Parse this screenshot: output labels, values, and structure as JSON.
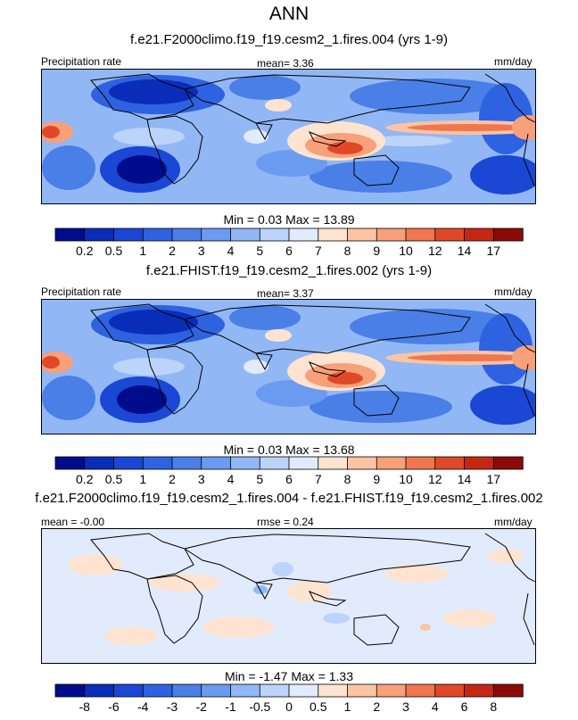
{
  "header": {
    "title": "ANN"
  },
  "panels": [
    {
      "title": "f.e21.F2000climo.f19_f19.cesm2_1.fires.004 (yrs 1-9)",
      "left_label": "Precipitation rate",
      "center_label": "mean=   3.36",
      "right_label": "mm/day",
      "stats": "Min =   0.03 Max =  13.89",
      "variant": "abs"
    },
    {
      "title": "f.e21.FHIST.f19_f19.cesm2_1.fires.002 (yrs 1-9)",
      "left_label": "Precipitation rate",
      "center_label": "mean=   3.37",
      "right_label": "mm/day",
      "stats": "Min =   0.03 Max =  13.68",
      "variant": "abs"
    },
    {
      "title": "f.e21.F2000climo.f19_f19.cesm2_1.fires.004 - f.e21.FHIST.f19_f19.cesm2_1.fires.002",
      "left_label": "mean =  -0.00",
      "center_label": "rmse =   0.24",
      "right_label": "mm/day",
      "stats": "Min =  -1.47 Max =   1.33",
      "variant": "diff"
    }
  ],
  "chart_data": [
    {
      "type": "heatmap",
      "title": "f.e21.F2000climo.f19_f19.cesm2_1.fires.004 (yrs 1-9)",
      "variable": "Precipitation rate",
      "units": "mm/day",
      "mean": 3.36,
      "min": 0.03,
      "max": 13.89,
      "colorbar_levels": [
        "0.2",
        "0.5",
        "1",
        "2",
        "3",
        "4",
        "5",
        "6",
        "7",
        "8",
        "9",
        "10",
        "12",
        "14",
        "17"
      ],
      "colorbar_colors": [
        "#000c8c",
        "#0a2db9",
        "#1a47d4",
        "#2e62e0",
        "#4a7fe8",
        "#6b9bf0",
        "#92b7f5",
        "#bcd3fa",
        "#e1ebfc",
        "#fde3d0",
        "#fbc4a4",
        "#f7a07a",
        "#f0764f",
        "#e0482a",
        "#c42814",
        "#8c0a0a"
      ]
    },
    {
      "type": "heatmap",
      "title": "f.e21.FHIST.f19_f19.cesm2_1.fires.002 (yrs 1-9)",
      "variable": "Precipitation rate",
      "units": "mm/day",
      "mean": 3.37,
      "min": 0.03,
      "max": 13.68,
      "colorbar_levels": [
        "0.2",
        "0.5",
        "1",
        "2",
        "3",
        "4",
        "5",
        "6",
        "7",
        "8",
        "9",
        "10",
        "12",
        "14",
        "17"
      ],
      "colorbar_colors": [
        "#000c8c",
        "#0a2db9",
        "#1a47d4",
        "#2e62e0",
        "#4a7fe8",
        "#6b9bf0",
        "#92b7f5",
        "#bcd3fa",
        "#e1ebfc",
        "#fde3d0",
        "#fbc4a4",
        "#f7a07a",
        "#f0764f",
        "#e0482a",
        "#c42814",
        "#8c0a0a"
      ]
    },
    {
      "type": "heatmap",
      "title": "f.e21.F2000climo.f19_f19.cesm2_1.fires.004 - f.e21.FHIST.f19_f19.cesm2_1.fires.002",
      "units": "mm/day",
      "mean": -0.0,
      "rmse": 0.24,
      "min": -1.47,
      "max": 1.33,
      "colorbar_levels": [
        "-8",
        "-6",
        "-4",
        "-3",
        "-2",
        "-1",
        "-0.5",
        "0",
        "0.5",
        "1",
        "2",
        "3",
        "4",
        "6",
        "8"
      ],
      "colorbar_colors": [
        "#000c8c",
        "#0a2db9",
        "#1a47d4",
        "#2e62e0",
        "#4a7fe8",
        "#6b9bf0",
        "#92b7f5",
        "#bcd3fa",
        "#e1ebfc",
        "#fde3d0",
        "#fbc4a4",
        "#f7a07a",
        "#f0764f",
        "#e0482a",
        "#c42814",
        "#8c0a0a"
      ]
    }
  ]
}
